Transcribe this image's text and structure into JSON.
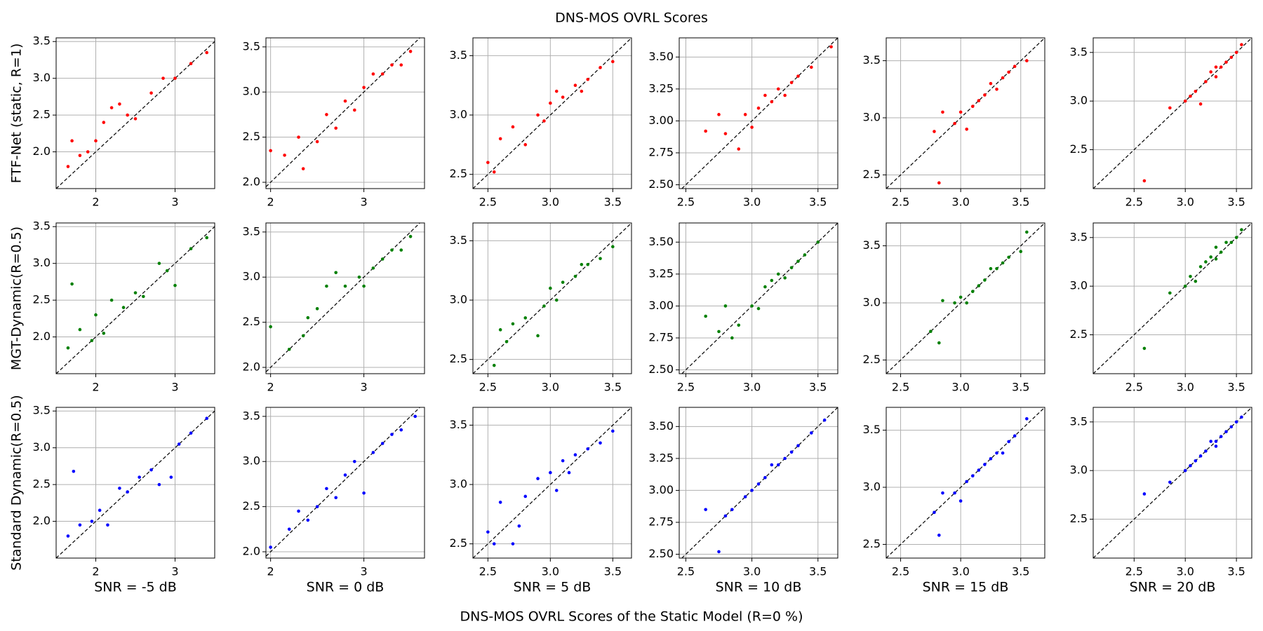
{
  "title": "DNS-MOS OVRL Scores",
  "xlabel": "DNS-MOS OVRL Scores of the Static Model (R=0 %)",
  "chart_data": [
    {
      "type": "scatter",
      "ylabel": "FTF-Net (static, R=1)",
      "color": "#ff0000",
      "grid": true,
      "x": [
        1.65,
        1.7,
        1.8,
        1.9,
        2.0,
        2.1,
        2.2,
        2.3,
        2.4,
        2.5,
        2.7,
        2.85,
        3.0,
        3.2,
        3.4
      ],
      "y": [
        1.8,
        2.15,
        1.95,
        2.0,
        2.15,
        2.4,
        2.6,
        2.65,
        2.5,
        2.45,
        2.8,
        3.0,
        3.0,
        3.2,
        3.35
      ],
      "xlim": [
        1.5,
        3.5
      ],
      "ylim": [
        1.5,
        3.55
      ],
      "xticks": [
        2,
        3
      ],
      "yticks": [
        {
          "value": 2,
          "label": "2.0"
        },
        2.5,
        {
          "value": 3,
          "label": "3.0"
        },
        3.5
      ]
    },
    {
      "type": "scatter",
      "color": "#ff0000",
      "grid": true,
      "x": [
        2.0,
        2.15,
        2.3,
        2.35,
        2.5,
        2.6,
        2.7,
        2.8,
        2.9,
        3.0,
        3.1,
        3.2,
        3.3,
        3.4,
        3.5
      ],
      "y": [
        2.35,
        2.3,
        2.5,
        2.15,
        2.45,
        2.75,
        2.6,
        2.9,
        2.8,
        3.05,
        3.2,
        3.2,
        3.3,
        3.3,
        3.45
      ],
      "xlim": [
        1.95,
        3.65
      ],
      "ylim": [
        1.93,
        3.6
      ],
      "xticks": [
        2,
        3
      ],
      "yticks": [
        {
          "value": 2,
          "label": "2.0"
        },
        2.5,
        {
          "value": 3,
          "label": "3.0"
        },
        3.5
      ]
    },
    {
      "type": "scatter",
      "color": "#ff0000",
      "grid": true,
      "x": [
        2.5,
        2.55,
        2.6,
        2.7,
        2.8,
        2.9,
        2.95,
        3.0,
        3.05,
        3.1,
        3.2,
        3.25,
        3.3,
        3.4,
        3.5
      ],
      "y": [
        2.6,
        2.52,
        2.8,
        2.9,
        2.75,
        3.0,
        2.95,
        3.1,
        3.2,
        3.15,
        3.25,
        3.2,
        3.3,
        3.4,
        3.45
      ],
      "xlim": [
        2.38,
        3.65
      ],
      "ylim": [
        2.38,
        3.65
      ],
      "xticks": [
        2.5,
        {
          "value": 3,
          "label": "3.0"
        },
        3.5
      ],
      "yticks": [
        2.5,
        {
          "value": 3,
          "label": "3.0"
        },
        3.5
      ]
    },
    {
      "type": "scatter",
      "color": "#ff0000",
      "grid": true,
      "x": [
        2.65,
        2.75,
        2.8,
        2.9,
        2.95,
        3.0,
        3.05,
        3.1,
        3.15,
        3.2,
        3.25,
        3.3,
        3.35,
        3.45,
        3.6
      ],
      "y": [
        2.92,
        3.05,
        2.9,
        2.78,
        3.05,
        2.95,
        3.1,
        3.2,
        3.15,
        3.25,
        3.2,
        3.3,
        3.35,
        3.42,
        3.58
      ],
      "xlim": [
        2.45,
        3.65
      ],
      "ylim": [
        2.47,
        3.65
      ],
      "xticks": [
        2.5,
        {
          "value": 3,
          "label": "3.0"
        },
        3.5
      ],
      "yticks": [
        {
          "value": 2.5,
          "label": "2.50"
        },
        2.75,
        {
          "value": 3,
          "label": "3.00"
        },
        3.25,
        {
          "value": 3.5,
          "label": "3.50"
        }
      ]
    },
    {
      "type": "scatter",
      "color": "#ff0000",
      "grid": true,
      "x": [
        2.78,
        2.82,
        2.85,
        2.95,
        3.0,
        3.05,
        3.1,
        3.15,
        3.2,
        3.25,
        3.3,
        3.35,
        3.4,
        3.45,
        3.55
      ],
      "y": [
        2.88,
        2.43,
        3.05,
        2.95,
        3.05,
        2.9,
        3.1,
        3.15,
        3.2,
        3.3,
        3.25,
        3.35,
        3.4,
        3.45,
        3.5
      ],
      "xlim": [
        2.38,
        3.7
      ],
      "ylim": [
        2.38,
        3.7
      ],
      "xticks": [
        2.5,
        {
          "value": 3,
          "label": "3.0"
        },
        3.5
      ],
      "yticks": [
        2.5,
        {
          "value": 3,
          "label": "3.0"
        },
        3.5
      ]
    },
    {
      "type": "scatter",
      "color": "#ff0000",
      "grid": true,
      "x": [
        2.6,
        2.85,
        3.0,
        3.05,
        3.1,
        3.15,
        3.2,
        3.25,
        3.3,
        3.35,
        3.4,
        3.45,
        3.5,
        3.55,
        3.3
      ],
      "y": [
        2.18,
        2.93,
        3.0,
        3.05,
        3.1,
        2.97,
        3.2,
        3.3,
        3.25,
        3.35,
        3.4,
        3.45,
        3.5,
        3.58,
        3.35
      ],
      "xlim": [
        2.1,
        3.65
      ],
      "ylim": [
        2.1,
        3.65
      ],
      "xticks": [
        2.5,
        {
          "value": 3,
          "label": "3.0"
        },
        3.5
      ],
      "yticks": [
        2.5,
        {
          "value": 3,
          "label": "3.0"
        },
        3.5
      ]
    },
    {
      "type": "scatter",
      "ylabel": "MGT-Dynamic(R=0.5)",
      "color": "#008000",
      "grid": true,
      "x": [
        1.65,
        1.7,
        1.8,
        1.95,
        2.0,
        2.1,
        2.2,
        2.35,
        2.5,
        2.6,
        2.8,
        2.9,
        3.0,
        3.2,
        3.4
      ],
      "y": [
        1.85,
        2.72,
        2.1,
        1.95,
        2.3,
        2.05,
        2.5,
        2.4,
        2.6,
        2.55,
        3.0,
        2.9,
        2.7,
        3.2,
        3.35
      ],
      "xlim": [
        1.5,
        3.5
      ],
      "ylim": [
        1.5,
        3.55
      ],
      "xticks": [
        2,
        3
      ],
      "yticks": [
        {
          "value": 2,
          "label": "2.0"
        },
        2.5,
        {
          "value": 3,
          "label": "3.0"
        },
        3.5
      ]
    },
    {
      "type": "scatter",
      "color": "#008000",
      "grid": true,
      "x": [
        2.0,
        2.2,
        2.35,
        2.4,
        2.5,
        2.6,
        2.7,
        2.8,
        2.95,
        3.0,
        3.1,
        3.2,
        3.3,
        3.4,
        3.5
      ],
      "y": [
        2.45,
        2.2,
        2.35,
        2.55,
        2.65,
        2.9,
        3.05,
        2.9,
        3.0,
        2.9,
        3.1,
        3.2,
        3.3,
        3.3,
        3.45
      ],
      "xlim": [
        1.95,
        3.65
      ],
      "ylim": [
        1.93,
        3.6
      ],
      "xticks": [
        2,
        3
      ],
      "yticks": [
        {
          "value": 2,
          "label": "2.0"
        },
        2.5,
        {
          "value": 3,
          "label": "3.0"
        },
        3.5
      ]
    },
    {
      "type": "scatter",
      "color": "#008000",
      "grid": true,
      "x": [
        2.55,
        2.6,
        2.65,
        2.7,
        2.8,
        2.9,
        2.95,
        3.0,
        3.05,
        3.1,
        3.2,
        3.25,
        3.3,
        3.4,
        3.5
      ],
      "y": [
        2.45,
        2.75,
        2.65,
        2.8,
        2.85,
        2.7,
        2.95,
        3.1,
        3.0,
        3.15,
        3.2,
        3.3,
        3.3,
        3.35,
        3.45
      ],
      "xlim": [
        2.38,
        3.65
      ],
      "ylim": [
        2.38,
        3.65
      ],
      "xticks": [
        2.5,
        {
          "value": 3,
          "label": "3.0"
        },
        3.5
      ],
      "yticks": [
        2.5,
        {
          "value": 3,
          "label": "3.0"
        },
        3.5
      ]
    },
    {
      "type": "scatter",
      "color": "#008000",
      "grid": true,
      "x": [
        2.65,
        2.75,
        2.8,
        2.85,
        2.9,
        3.0,
        3.05,
        3.1,
        3.15,
        3.2,
        3.25,
        3.3,
        3.35,
        3.4,
        3.5
      ],
      "y": [
        2.92,
        2.8,
        3.0,
        2.75,
        2.85,
        3.0,
        2.98,
        3.15,
        3.2,
        3.25,
        3.22,
        3.3,
        3.35,
        3.4,
        3.5
      ],
      "xlim": [
        2.45,
        3.65
      ],
      "ylim": [
        2.47,
        3.65
      ],
      "xticks": [
        2.5,
        {
          "value": 3,
          "label": "3.0"
        },
        3.5
      ],
      "yticks": [
        {
          "value": 2.5,
          "label": "2.50"
        },
        2.75,
        {
          "value": 3,
          "label": "3.00"
        },
        3.25,
        {
          "value": 3.5,
          "label": "3.50"
        }
      ]
    },
    {
      "type": "scatter",
      "color": "#008000",
      "grid": true,
      "x": [
        2.75,
        2.82,
        2.85,
        2.95,
        3.0,
        3.05,
        3.1,
        3.15,
        3.2,
        3.25,
        3.3,
        3.35,
        3.4,
        3.5,
        3.55
      ],
      "y": [
        2.75,
        2.65,
        3.02,
        3.0,
        3.05,
        3.0,
        3.1,
        3.15,
        3.2,
        3.3,
        3.3,
        3.35,
        3.4,
        3.45,
        3.62
      ],
      "xlim": [
        2.38,
        3.7
      ],
      "ylim": [
        2.38,
        3.7
      ],
      "xticks": [
        2.5,
        {
          "value": 3,
          "label": "3.0"
        },
        3.5
      ],
      "yticks": [
        2.5,
        {
          "value": 3,
          "label": "3.0"
        },
        3.5
      ]
    },
    {
      "type": "scatter",
      "color": "#008000",
      "grid": true,
      "x": [
        2.6,
        2.85,
        3.0,
        3.05,
        3.1,
        3.15,
        3.2,
        3.25,
        3.3,
        3.35,
        3.4,
        3.45,
        3.5,
        3.55,
        3.3
      ],
      "y": [
        2.36,
        2.93,
        3.0,
        3.1,
        3.05,
        3.2,
        3.25,
        3.3,
        3.28,
        3.35,
        3.45,
        3.45,
        3.5,
        3.58,
        3.4
      ],
      "xlim": [
        2.1,
        3.65
      ],
      "ylim": [
        2.1,
        3.65
      ],
      "xticks": [
        2.5,
        {
          "value": 3,
          "label": "3.0"
        },
        3.5
      ],
      "yticks": [
        2.5,
        {
          "value": 3,
          "label": "3.0"
        },
        3.5
      ]
    },
    {
      "type": "scatter",
      "ylabel": "Standard Dynamic(R=0.5)",
      "xlabel": "SNR = -5 dB",
      "color": "#0000ff",
      "grid": true,
      "x": [
        1.65,
        1.72,
        1.8,
        1.95,
        2.05,
        2.15,
        2.3,
        2.4,
        2.55,
        2.7,
        2.8,
        2.95,
        3.05,
        3.2,
        3.4
      ],
      "y": [
        1.8,
        2.68,
        1.95,
        2.0,
        2.15,
        1.95,
        2.45,
        2.4,
        2.6,
        2.7,
        2.5,
        2.6,
        3.05,
        3.2,
        3.4
      ],
      "xlim": [
        1.5,
        3.5
      ],
      "ylim": [
        1.5,
        3.55
      ],
      "xticks": [
        2,
        3
      ],
      "yticks": [
        {
          "value": 2,
          "label": "2.0"
        },
        2.5,
        {
          "value": 3,
          "label": "3.0"
        },
        3.5
      ]
    },
    {
      "type": "scatter",
      "xlabel": "SNR = 0 dB",
      "color": "#0000ff",
      "grid": true,
      "x": [
        2.0,
        2.2,
        2.3,
        2.4,
        2.5,
        2.6,
        2.7,
        2.8,
        2.9,
        3.0,
        3.1,
        3.2,
        3.3,
        3.4,
        3.55
      ],
      "y": [
        2.05,
        2.25,
        2.45,
        2.35,
        2.5,
        2.7,
        2.6,
        2.85,
        3.0,
        2.65,
        3.1,
        3.2,
        3.3,
        3.35,
        3.5
      ],
      "xlim": [
        1.95,
        3.65
      ],
      "ylim": [
        1.93,
        3.6
      ],
      "xticks": [
        2,
        3
      ],
      "yticks": [
        {
          "value": 2,
          "label": "2.0"
        },
        2.5,
        {
          "value": 3,
          "label": "3.0"
        },
        3.5
      ]
    },
    {
      "type": "scatter",
      "xlabel": "SNR = 5 dB",
      "color": "#0000ff",
      "grid": true,
      "x": [
        2.5,
        2.55,
        2.6,
        2.7,
        2.75,
        2.8,
        2.9,
        3.0,
        3.05,
        3.1,
        3.15,
        3.2,
        3.3,
        3.4,
        3.5
      ],
      "y": [
        2.6,
        2.5,
        2.85,
        2.5,
        2.65,
        2.9,
        3.05,
        3.1,
        2.95,
        3.2,
        3.1,
        3.25,
        3.3,
        3.35,
        3.45
      ],
      "xlim": [
        2.38,
        3.65
      ],
      "ylim": [
        2.38,
        3.65
      ],
      "xticks": [
        2.5,
        {
          "value": 3,
          "label": "3.0"
        },
        3.5
      ],
      "yticks": [
        2.5,
        {
          "value": 3,
          "label": "3.0"
        },
        3.5
      ]
    },
    {
      "type": "scatter",
      "xlabel": "SNR = 10 dB",
      "color": "#0000ff",
      "grid": true,
      "x": [
        2.65,
        2.75,
        2.8,
        2.85,
        2.95,
        3.0,
        3.05,
        3.1,
        3.15,
        3.2,
        3.25,
        3.3,
        3.35,
        3.45,
        3.55
      ],
      "y": [
        2.85,
        2.52,
        2.8,
        2.85,
        2.95,
        3.0,
        3.05,
        3.1,
        3.2,
        3.2,
        3.25,
        3.3,
        3.35,
        3.45,
        3.55
      ],
      "xlim": [
        2.45,
        3.65
      ],
      "ylim": [
        2.47,
        3.65
      ],
      "xticks": [
        2.5,
        {
          "value": 3,
          "label": "3.0"
        },
        3.5
      ],
      "yticks": [
        {
          "value": 2.5,
          "label": "2.50"
        },
        2.75,
        {
          "value": 3,
          "label": "3.00"
        },
        3.25,
        {
          "value": 3.5,
          "label": "3.50"
        }
      ]
    },
    {
      "type": "scatter",
      "xlabel": "SNR = 15 dB",
      "color": "#0000ff",
      "grid": true,
      "x": [
        2.78,
        2.82,
        2.85,
        2.95,
        3.0,
        3.05,
        3.1,
        3.15,
        3.2,
        3.25,
        3.3,
        3.35,
        3.4,
        3.45,
        3.55
      ],
      "y": [
        2.78,
        2.58,
        2.95,
        2.95,
        2.88,
        3.05,
        3.1,
        3.15,
        3.2,
        3.25,
        3.3,
        3.3,
        3.4,
        3.45,
        3.6
      ],
      "xlim": [
        2.38,
        3.7
      ],
      "ylim": [
        2.38,
        3.7
      ],
      "xticks": [
        2.5,
        {
          "value": 3,
          "label": "3.0"
        },
        3.5
      ],
      "yticks": [
        2.5,
        {
          "value": 3,
          "label": "3.0"
        },
        3.5
      ]
    },
    {
      "type": "scatter",
      "xlabel": "SNR = 20 dB",
      "color": "#0000ff",
      "grid": true,
      "x": [
        2.6,
        2.85,
        3.0,
        3.05,
        3.1,
        3.15,
        3.2,
        3.25,
        3.3,
        3.35,
        3.4,
        3.45,
        3.5,
        3.55,
        3.3
      ],
      "y": [
        2.76,
        2.88,
        3.0,
        3.05,
        3.1,
        3.15,
        3.2,
        3.3,
        3.25,
        3.35,
        3.4,
        3.45,
        3.5,
        3.55,
        3.3
      ],
      "xlim": [
        2.1,
        3.65
      ],
      "ylim": [
        2.1,
        3.65
      ],
      "xticks": [
        2.5,
        {
          "value": 3,
          "label": "3.0"
        },
        3.5
      ],
      "yticks": [
        2.5,
        {
          "value": 3,
          "label": "3.0"
        },
        3.5
      ]
    }
  ]
}
